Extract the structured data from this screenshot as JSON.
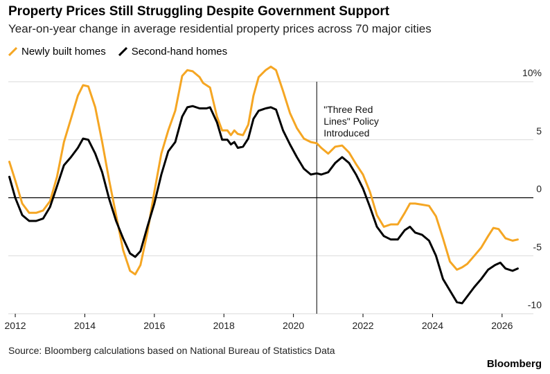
{
  "header": {
    "title": "Property Prices Still Struggling Despite Government Support",
    "subtitle": "Year-on-year change in average residential property prices across 70 major cities"
  },
  "footer": {
    "source": "Source: Bloomberg calculations based on National Bureau of Statistics Data",
    "brand": "Bloomberg"
  },
  "colors": {
    "new_homes": "#f5a623",
    "second_hand": "#000000",
    "grid": "#d9d9d9",
    "zero_line": "#000000"
  },
  "chart_data": {
    "type": "line",
    "title": "Property Prices Still Struggling Despite Government Support",
    "subtitle": "Year-on-year change in average residential property prices across 70 major cities",
    "xlabel": "",
    "ylabel": "",
    "xlim": [
      2011.8,
      2026.9
    ],
    "ylim": [
      -10,
      10
    ],
    "y_axis_side": "right",
    "y_ticks": [
      10,
      5,
      0,
      -5,
      -10
    ],
    "y_tick_labels": [
      "10%",
      "5",
      "0",
      "-5",
      "-10"
    ],
    "x_ticks": [
      2012,
      2014,
      2016,
      2018,
      2020,
      2022,
      2024,
      2026
    ],
    "x_tick_labels": [
      "2012",
      "2014",
      "2016",
      "2018",
      "2020",
      "2022",
      "2024",
      "2026"
    ],
    "grid": true,
    "legend_position": "top-left",
    "annotations": [
      {
        "x": 2020.67,
        "lines": [
          "\"Three Red",
          "Lines\" Policy",
          "Introduced"
        ]
      }
    ],
    "series": [
      {
        "name": "Newly built homes",
        "color": "#f5a623",
        "points": [
          [
            2011.83,
            3.1
          ],
          [
            2012.0,
            1.5
          ],
          [
            2012.2,
            -0.5
          ],
          [
            2012.4,
            -1.3
          ],
          [
            2012.6,
            -1.3
          ],
          [
            2012.8,
            -1.1
          ],
          [
            2013.0,
            -0.3
          ],
          [
            2013.2,
            1.8
          ],
          [
            2013.4,
            4.8
          ],
          [
            2013.6,
            6.8
          ],
          [
            2013.8,
            8.8
          ],
          [
            2013.95,
            9.7
          ],
          [
            2014.1,
            9.6
          ],
          [
            2014.3,
            7.8
          ],
          [
            2014.5,
            4.8
          ],
          [
            2014.7,
            1.5
          ],
          [
            2014.9,
            -1.5
          ],
          [
            2015.1,
            -4.5
          ],
          [
            2015.3,
            -6.3
          ],
          [
            2015.45,
            -6.6
          ],
          [
            2015.6,
            -5.8
          ],
          [
            2015.8,
            -3.0
          ],
          [
            2016.0,
            0.5
          ],
          [
            2016.2,
            3.8
          ],
          [
            2016.4,
            5.8
          ],
          [
            2016.6,
            7.5
          ],
          [
            2016.8,
            10.5
          ],
          [
            2016.95,
            11.0
          ],
          [
            2017.1,
            10.9
          ],
          [
            2017.3,
            10.4
          ],
          [
            2017.4,
            9.9
          ],
          [
            2017.6,
            9.5
          ],
          [
            2017.8,
            7.0
          ],
          [
            2017.95,
            5.8
          ],
          [
            2018.1,
            5.8
          ],
          [
            2018.2,
            5.4
          ],
          [
            2018.3,
            5.8
          ],
          [
            2018.4,
            5.5
          ],
          [
            2018.55,
            5.4
          ],
          [
            2018.7,
            6.3
          ],
          [
            2018.85,
            8.8
          ],
          [
            2019.0,
            10.4
          ],
          [
            2019.2,
            11.0
          ],
          [
            2019.35,
            11.3
          ],
          [
            2019.5,
            11.0
          ],
          [
            2019.7,
            9.2
          ],
          [
            2019.9,
            7.3
          ],
          [
            2020.1,
            6.0
          ],
          [
            2020.3,
            5.1
          ],
          [
            2020.5,
            4.8
          ],
          [
            2020.67,
            4.7
          ],
          [
            2020.8,
            4.3
          ],
          [
            2021.0,
            3.8
          ],
          [
            2021.2,
            4.4
          ],
          [
            2021.4,
            4.5
          ],
          [
            2021.6,
            3.9
          ],
          [
            2021.8,
            2.9
          ],
          [
            2022.0,
            2.0
          ],
          [
            2022.2,
            0.5
          ],
          [
            2022.4,
            -1.5
          ],
          [
            2022.6,
            -2.5
          ],
          [
            2022.8,
            -2.3
          ],
          [
            2023.0,
            -2.3
          ],
          [
            2023.2,
            -1.3
          ],
          [
            2023.35,
            -0.5
          ],
          [
            2023.5,
            -0.5
          ],
          [
            2023.7,
            -0.6
          ],
          [
            2023.9,
            -0.7
          ],
          [
            2024.1,
            -1.6
          ],
          [
            2024.3,
            -3.5
          ],
          [
            2024.5,
            -5.5
          ],
          [
            2024.7,
            -6.2
          ],
          [
            2024.85,
            -6.0
          ],
          [
            2025.0,
            -5.7
          ],
          [
            2025.2,
            -5.0
          ],
          [
            2025.4,
            -4.3
          ],
          [
            2025.6,
            -3.3
          ],
          [
            2025.75,
            -2.6
          ],
          [
            2025.9,
            -2.7
          ],
          [
            2026.1,
            -3.5
          ],
          [
            2026.3,
            -3.7
          ],
          [
            2026.45,
            -3.6
          ]
        ]
      },
      {
        "name": "Second-hand homes",
        "color": "#000000",
        "points": [
          [
            2011.83,
            1.8
          ],
          [
            2012.0,
            0.0
          ],
          [
            2012.2,
            -1.5
          ],
          [
            2012.4,
            -2.0
          ],
          [
            2012.6,
            -2.0
          ],
          [
            2012.8,
            -1.8
          ],
          [
            2013.0,
            -0.8
          ],
          [
            2013.2,
            1.0
          ],
          [
            2013.4,
            2.8
          ],
          [
            2013.6,
            3.5
          ],
          [
            2013.8,
            4.3
          ],
          [
            2013.95,
            5.1
          ],
          [
            2014.1,
            5.0
          ],
          [
            2014.3,
            3.8
          ],
          [
            2014.5,
            2.2
          ],
          [
            2014.7,
            -0.1
          ],
          [
            2014.9,
            -2.0
          ],
          [
            2015.1,
            -3.5
          ],
          [
            2015.3,
            -4.8
          ],
          [
            2015.45,
            -5.1
          ],
          [
            2015.6,
            -4.6
          ],
          [
            2015.8,
            -2.5
          ],
          [
            2016.0,
            -0.5
          ],
          [
            2016.2,
            2.0
          ],
          [
            2016.4,
            4.0
          ],
          [
            2016.6,
            4.8
          ],
          [
            2016.8,
            7.0
          ],
          [
            2016.95,
            7.8
          ],
          [
            2017.1,
            7.9
          ],
          [
            2017.3,
            7.7
          ],
          [
            2017.5,
            7.7
          ],
          [
            2017.6,
            7.8
          ],
          [
            2017.8,
            6.5
          ],
          [
            2017.95,
            5.0
          ],
          [
            2018.1,
            5.0
          ],
          [
            2018.2,
            4.6
          ],
          [
            2018.3,
            4.8
          ],
          [
            2018.4,
            4.3
          ],
          [
            2018.55,
            4.4
          ],
          [
            2018.7,
            5.1
          ],
          [
            2018.85,
            6.8
          ],
          [
            2019.0,
            7.5
          ],
          [
            2019.2,
            7.7
          ],
          [
            2019.35,
            7.8
          ],
          [
            2019.5,
            7.6
          ],
          [
            2019.7,
            5.8
          ],
          [
            2019.9,
            4.6
          ],
          [
            2020.1,
            3.5
          ],
          [
            2020.3,
            2.5
          ],
          [
            2020.5,
            2.0
          ],
          [
            2020.67,
            2.1
          ],
          [
            2020.8,
            2.0
          ],
          [
            2021.0,
            2.2
          ],
          [
            2021.2,
            3.0
          ],
          [
            2021.4,
            3.5
          ],
          [
            2021.6,
            3.0
          ],
          [
            2021.8,
            2.0
          ],
          [
            2022.0,
            0.8
          ],
          [
            2022.2,
            -0.8
          ],
          [
            2022.4,
            -2.5
          ],
          [
            2022.6,
            -3.3
          ],
          [
            2022.8,
            -3.6
          ],
          [
            2023.0,
            -3.6
          ],
          [
            2023.2,
            -2.8
          ],
          [
            2023.35,
            -2.5
          ],
          [
            2023.5,
            -3.0
          ],
          [
            2023.7,
            -3.2
          ],
          [
            2023.9,
            -3.7
          ],
          [
            2024.1,
            -5.0
          ],
          [
            2024.3,
            -7.0
          ],
          [
            2024.5,
            -8.0
          ],
          [
            2024.7,
            -9.0
          ],
          [
            2024.85,
            -9.1
          ],
          [
            2025.0,
            -8.5
          ],
          [
            2025.2,
            -7.7
          ],
          [
            2025.4,
            -7.0
          ],
          [
            2025.6,
            -6.2
          ],
          [
            2025.8,
            -5.8
          ],
          [
            2025.95,
            -5.6
          ],
          [
            2026.1,
            -6.1
          ],
          [
            2026.3,
            -6.3
          ],
          [
            2026.45,
            -6.1
          ]
        ]
      }
    ]
  }
}
